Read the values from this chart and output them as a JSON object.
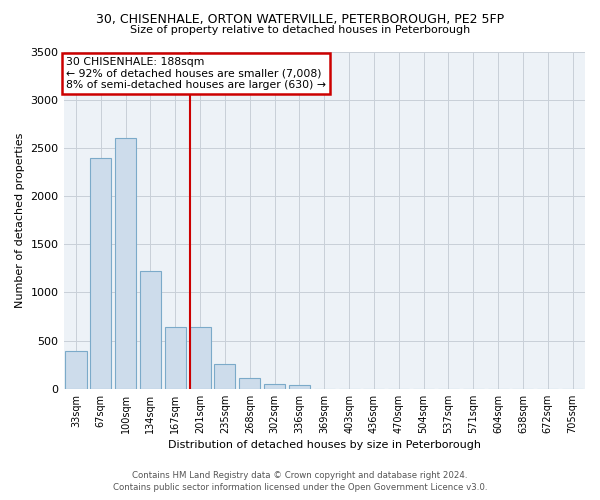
{
  "title": "30, CHISENHALE, ORTON WATERVILLE, PETERBOROUGH, PE2 5FP",
  "subtitle": "Size of property relative to detached houses in Peterborough",
  "xlabel": "Distribution of detached houses by size in Peterborough",
  "ylabel": "Number of detached properties",
  "bin_labels": [
    "33sqm",
    "67sqm",
    "100sqm",
    "134sqm",
    "167sqm",
    "201sqm",
    "235sqm",
    "268sqm",
    "302sqm",
    "336sqm",
    "369sqm",
    "403sqm",
    "436sqm",
    "470sqm",
    "504sqm",
    "537sqm",
    "571sqm",
    "604sqm",
    "638sqm",
    "672sqm",
    "705sqm"
  ],
  "bar_heights": [
    390,
    2400,
    2600,
    1220,
    640,
    640,
    255,
    110,
    50,
    35,
    0,
    0,
    0,
    0,
    0,
    0,
    0,
    0,
    0,
    0,
    0
  ],
  "bar_color": "#cddceb",
  "bar_edge_color": "#7baac9",
  "property_size_idx": 5,
  "vline_color": "#cc0000",
  "annotation_title": "30 CHISENHALE: 188sqm",
  "annotation_line1": "← 92% of detached houses are smaller (7,008)",
  "annotation_line2": "8% of semi-detached houses are larger (630) →",
  "annotation_box_color": "#cc0000",
  "ylim": [
    0,
    3500
  ],
  "yticks": [
    0,
    500,
    1000,
    1500,
    2000,
    2500,
    3000,
    3500
  ],
  "footer_line1": "Contains HM Land Registry data © Crown copyright and database right 2024.",
  "footer_line2": "Contains public sector information licensed under the Open Government Licence v3.0.",
  "bg_color": "#edf2f7",
  "grid_color": "#c8cfd8"
}
